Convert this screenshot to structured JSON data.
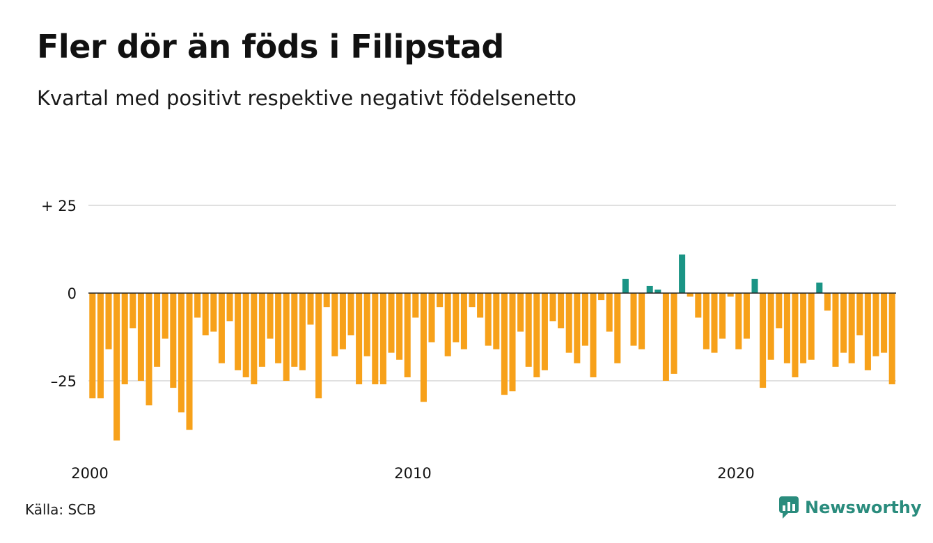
{
  "title": "Fler dör än föds i Filipstad",
  "subtitle": "Kvartal med positivt respektive negativt födelsenetto",
  "source": "Källa: SCB",
  "brand": "Newsworthy",
  "colors": {
    "positive": "#1a9485",
    "negative": "#f7a11a",
    "grid": "#e0e0e0",
    "zero": "#222222",
    "brand": "#2a8c7d"
  },
  "chart_data": {
    "type": "bar",
    "x_start": "2000 Q1",
    "ylim": [
      -42,
      25
    ],
    "yticks": [
      {
        "value": 25,
        "label": "+ 25"
      },
      {
        "value": 0,
        "label": "0"
      },
      {
        "value": -25,
        "label": "–25"
      }
    ],
    "xticks": [
      {
        "index": 0,
        "label": "2000"
      },
      {
        "index": 40,
        "label": "2010"
      },
      {
        "index": 80,
        "label": "2020"
      }
    ],
    "grid": true,
    "values": [
      -30,
      -30,
      -16,
      -42,
      -26,
      -10,
      -25,
      -32,
      -21,
      -13,
      -27,
      -34,
      -39,
      -7,
      -12,
      -11,
      -20,
      -8,
      -22,
      -24,
      -26,
      -21,
      -13,
      -20,
      -25,
      -21,
      -22,
      -9,
      -30,
      -4,
      -18,
      -16,
      -12,
      -26,
      -18,
      -26,
      -26,
      -17,
      -19,
      -24,
      -7,
      -31,
      -14,
      -4,
      -18,
      -14,
      -16,
      -4,
      -7,
      -15,
      -16,
      -29,
      -28,
      -11,
      -21,
      -24,
      -22,
      -8,
      -10,
      -17,
      -20,
      -15,
      -24,
      -2,
      -11,
      -20,
      4,
      -15,
      -16,
      2,
      1,
      -25,
      -23,
      11,
      -1,
      -7,
      -16,
      -17,
      -13,
      -1,
      -16,
      -13,
      4,
      -27,
      -19,
      -10,
      -20,
      -24,
      -20,
      -19,
      3,
      -5,
      -21,
      -17,
      -20,
      -12,
      -22,
      -18,
      -17,
      -26
    ]
  }
}
